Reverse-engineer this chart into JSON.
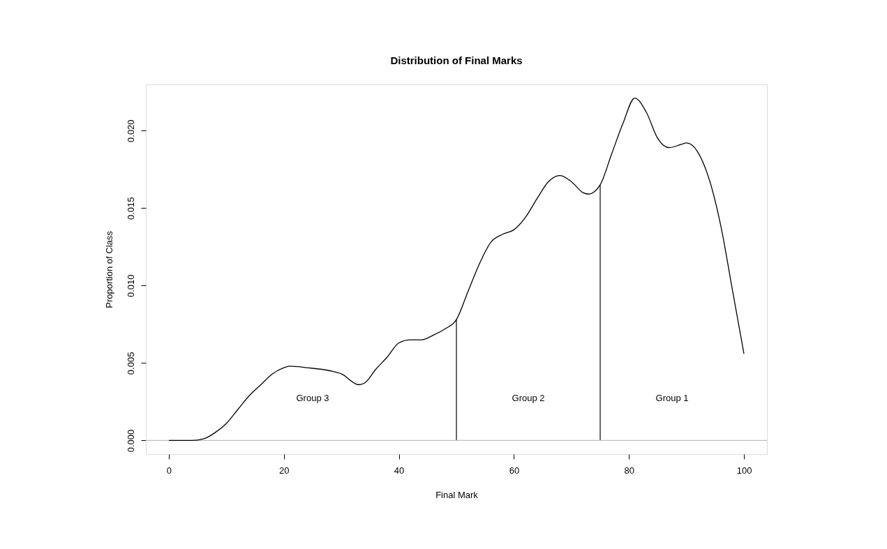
{
  "chart_data": {
    "type": "line",
    "title": "Distribution of Final Marks",
    "xlabel": "Final Mark",
    "ylabel": "Proportion of Class",
    "x": [
      0,
      4,
      6,
      8,
      10,
      12,
      14,
      16,
      18,
      20,
      21,
      24,
      28,
      30,
      33,
      34,
      36,
      38,
      40,
      42,
      44,
      46,
      48,
      50,
      52,
      54,
      56,
      58,
      60,
      62,
      64,
      66,
      68,
      70,
      72,
      73,
      75,
      77,
      79,
      81,
      83,
      85,
      87,
      89,
      90,
      92,
      94,
      96,
      98,
      100
    ],
    "series": [
      {
        "color": "#000000",
        "values": [
          0.0,
          0.0,
          0.0001,
          0.0005,
          0.0011,
          0.002,
          0.0029,
          0.0036,
          0.0043,
          0.0047,
          0.0048,
          0.0047,
          0.0045,
          0.0043,
          0.0036,
          0.0037,
          0.0046,
          0.0054,
          0.0063,
          0.0065,
          0.0065,
          0.0068,
          0.0072,
          0.0078,
          0.0096,
          0.0114,
          0.0128,
          0.0133,
          0.0136,
          0.0144,
          0.0156,
          0.0167,
          0.0171,
          0.0167,
          0.016,
          0.0159,
          0.0165,
          0.0185,
          0.0205,
          0.0221,
          0.0212,
          0.0195,
          0.0189,
          0.0191,
          0.0192,
          0.0186,
          0.0168,
          0.0138,
          0.0097,
          0.0056
        ]
      }
    ],
    "xlim": [
      -4,
      104
    ],
    "xticks": [
      0,
      20,
      40,
      60,
      80,
      100
    ],
    "ylim": [
      -0.00088,
      0.02298
    ],
    "yticks": [
      {
        "value": 0,
        "label": "0.000"
      },
      {
        "value": 0.005,
        "label": "0.005"
      },
      {
        "value": 0.01,
        "label": "0.010"
      },
      {
        "value": 0.015,
        "label": "0.015"
      },
      {
        "value": 0.02,
        "label": "0.020"
      }
    ],
    "ref_lines": [
      {
        "axis": "y",
        "value": 0,
        "color": "#bebebe"
      },
      {
        "axis": "x",
        "value": 50,
        "color": "#000000"
      },
      {
        "axis": "x",
        "value": 75,
        "color": "#000000"
      }
    ],
    "annotations": [
      "Group 3",
      "Group 2",
      "Group 1"
    ],
    "grid": false,
    "marker": "none",
    "line_style": "solid"
  }
}
